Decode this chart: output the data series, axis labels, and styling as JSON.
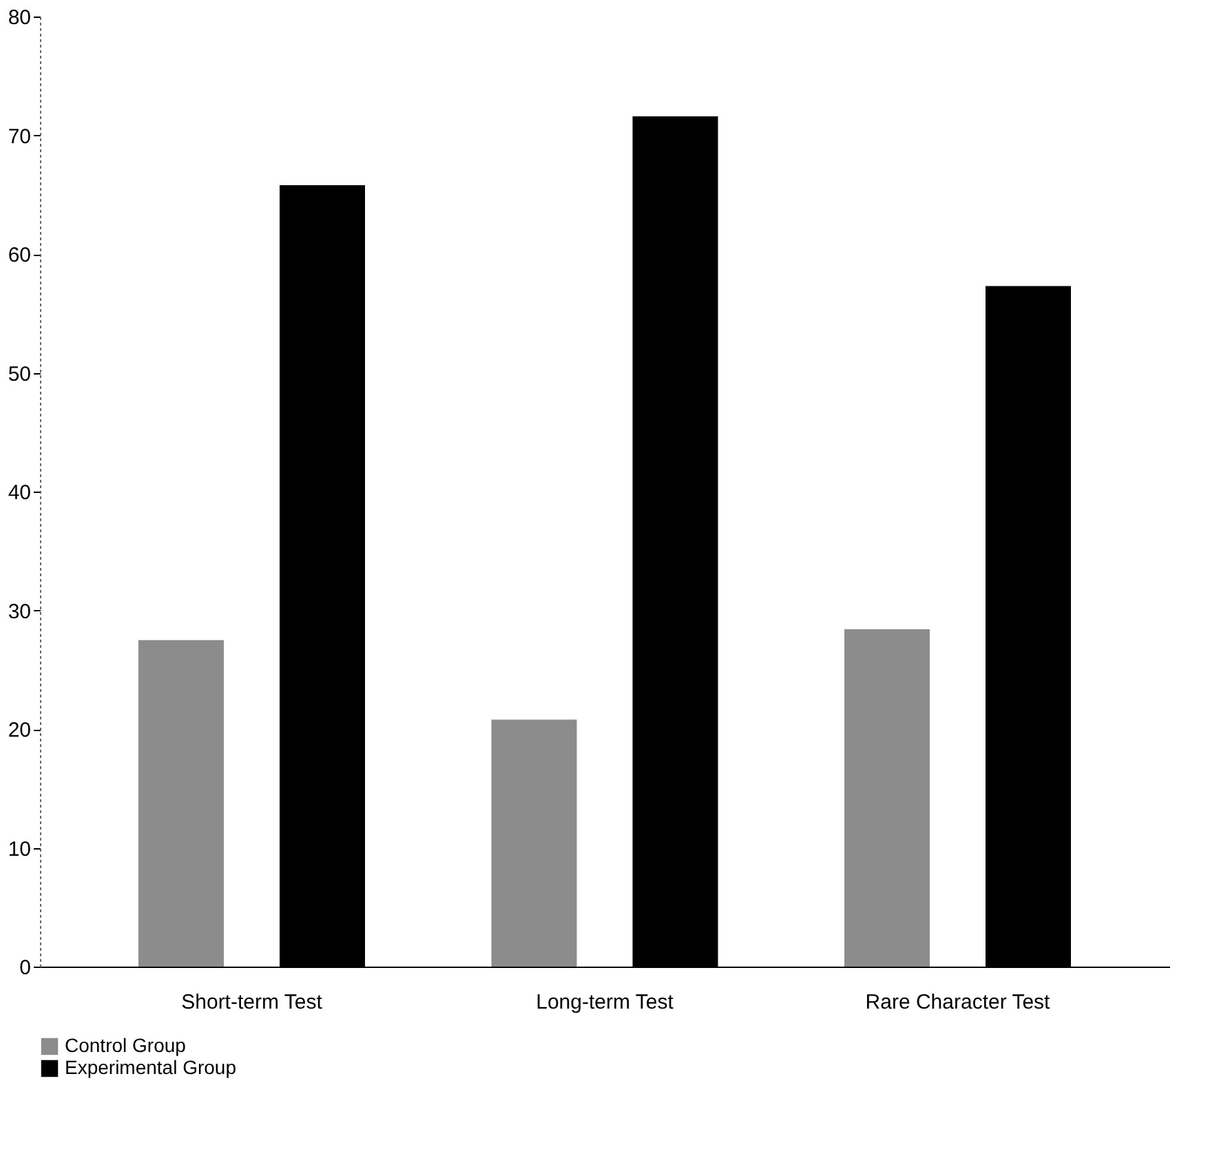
{
  "chart_data": {
    "type": "bar",
    "categories": [
      "Short-term Test",
      "Long-term Test",
      "Rare Character Test"
    ],
    "series": [
      {
        "name": "Control Group",
        "color": "#8c8c8c",
        "values": [
          27.5,
          20.8,
          28.4
        ]
      },
      {
        "name": "Experimental Group",
        "color": "#000000",
        "values": [
          65.8,
          71.6,
          57.3
        ]
      }
    ],
    "ylim": [
      0,
      80
    ],
    "yticks": [
      0,
      10,
      20,
      30,
      40,
      50,
      60,
      70,
      80
    ],
    "grid": false,
    "legend": "bottom"
  }
}
